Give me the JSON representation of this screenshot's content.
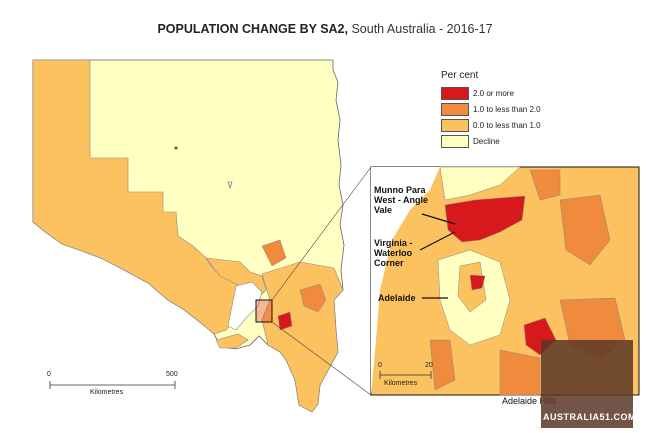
{
  "title": {
    "bold": "POPULATION CHANGE BY SA2,",
    "rest": " South Australia - 2016-17"
  },
  "legend": {
    "heading": "Per cent",
    "items": [
      {
        "label": "2.0 or more",
        "color": "#d7191c"
      },
      {
        "label": "1.0 to less than 2.0",
        "color": "#f08a3c"
      },
      {
        "label": "0.0 to less than 1.0",
        "color": "#fdc260"
      },
      {
        "label": "Decline",
        "color": "#ffffc2"
      }
    ]
  },
  "labels": {
    "munno": "Munno Para West - Angle Vale",
    "virginia": "Virginia - Waterloo Corner",
    "adelaide": "Adelaide",
    "hills": "Adelaide Hills"
  },
  "scale_main": {
    "start": "0",
    "end": "500",
    "unit": "Kilometres"
  },
  "scale_inset": {
    "start": "0",
    "end": "20",
    "unit": "Kilometres"
  },
  "watermark": "AUSTRALIA51.COM"
}
